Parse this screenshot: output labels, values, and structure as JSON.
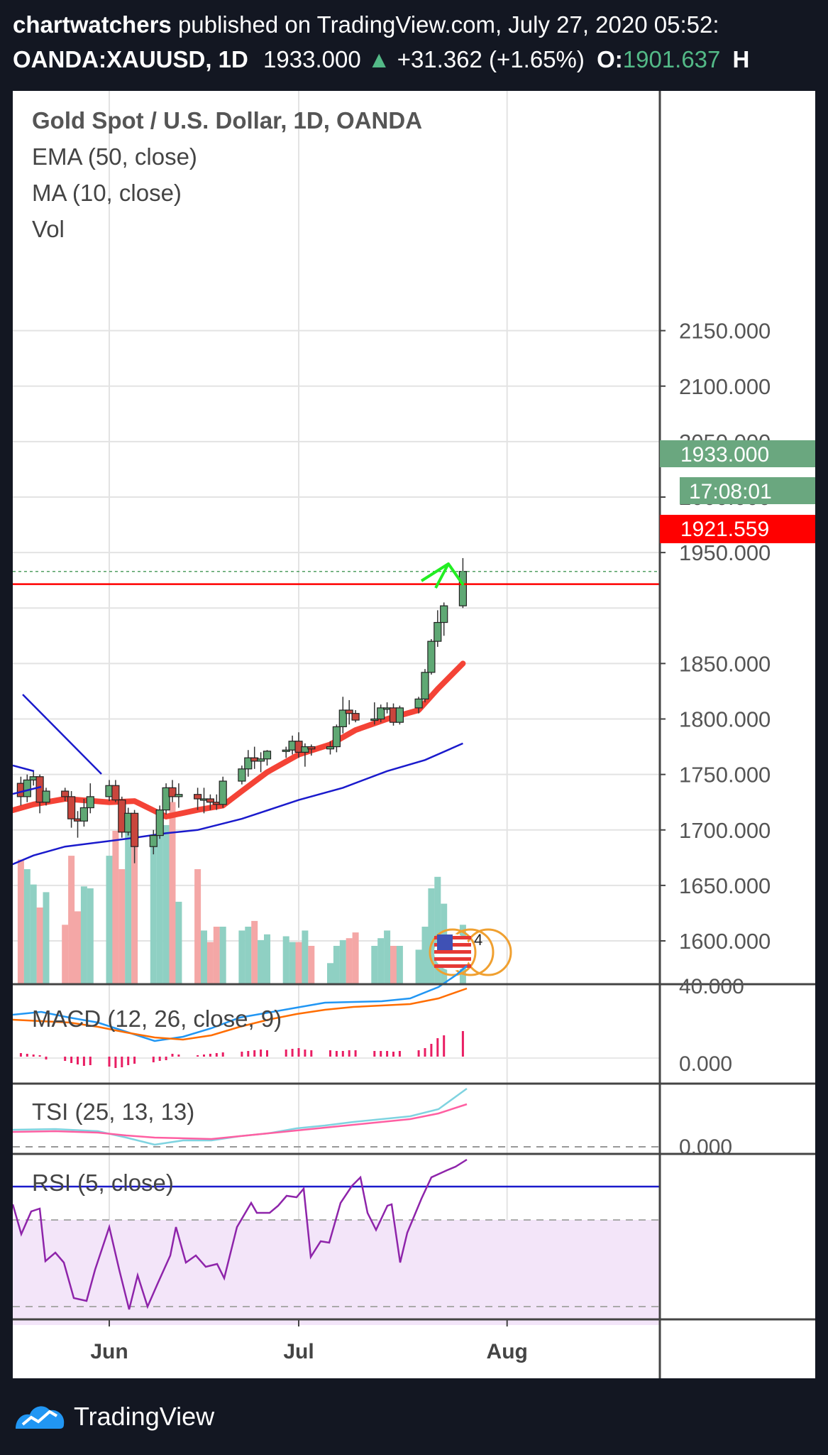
{
  "header": {
    "author": "chartwatchers",
    "published_text": "published on TradingView.com, July 27, 2020 05:52:",
    "symbol": "OANDA:XAUUSD, 1D",
    "price": "1933.000",
    "change": "+31.362 (+1.65%)",
    "open_label": "O:",
    "open_value": "1901.637",
    "trailing": "H"
  },
  "legend": {
    "title": "Gold Spot / U.S. Dollar, 1D, OANDA",
    "ema": "EMA (50, close)",
    "ma": "MA (10, close)",
    "vol": "Vol"
  },
  "price_labels": {
    "last": "1933.000",
    "countdown": "17:08:01",
    "red_line": "1921.559"
  },
  "event_badge_count": "4",
  "macd": {
    "title": "MACD (12, 26, close, 9)",
    "axis_top": "40.000",
    "axis_zero": "0.000"
  },
  "tsi": {
    "title": "TSI (25, 13, 13)",
    "axis_zero": "0.000"
  },
  "rsi": {
    "title": "RSI (5, close)"
  },
  "footer": {
    "brand": "TradingView"
  },
  "colors": {
    "background": "#131722",
    "up": "#53b987",
    "down": "#d9534f",
    "ema": "#1a1acc",
    "ma": "#f44336",
    "red_line": "#ff0000",
    "macd": "#2196f3",
    "signal": "#ff6d00",
    "tsi": "#7fd3e0",
    "tsi_signal": "#ff5fa2",
    "rsi": "#8e24aa"
  },
  "chart_data": {
    "type": "candlestick",
    "y_ticks": [
      "2150.000",
      "2100.000",
      "2050.000",
      "2000.000",
      "1950.000",
      "1850.000",
      "1800.000",
      "1750.000",
      "1700.000",
      "1650.000",
      "1600.000"
    ],
    "ylim": [
      1572,
      2180
    ],
    "x_ticks": [
      {
        "label": "Jun",
        "date": "2020-06-01"
      },
      {
        "label": "Jul",
        "date": "2020-07-01"
      },
      {
        "label": "Aug",
        "date": "2020-08-03"
      }
    ],
    "horizontal_line": 1921.559,
    "candles": [
      {
        "date": "2020-05-15",
        "o": 1730,
        "h": 1765,
        "l": 1718,
        "c": 1742
      },
      {
        "date": "2020-05-18",
        "o": 1742,
        "h": 1748,
        "l": 1722,
        "c": 1730
      },
      {
        "date": "2020-05-19",
        "o": 1730,
        "h": 1750,
        "l": 1725,
        "c": 1745
      },
      {
        "date": "2020-05-20",
        "o": 1745,
        "h": 1753,
        "l": 1740,
        "c": 1748
      },
      {
        "date": "2020-05-21",
        "o": 1748,
        "h": 1750,
        "l": 1715,
        "c": 1725
      },
      {
        "date": "2020-05-22",
        "o": 1725,
        "h": 1738,
        "l": 1722,
        "c": 1735
      },
      {
        "date": "2020-05-25",
        "o": 1735,
        "h": 1738,
        "l": 1726,
        "c": 1730
      },
      {
        "date": "2020-05-26",
        "o": 1730,
        "h": 1735,
        "l": 1702,
        "c": 1710
      },
      {
        "date": "2020-05-27",
        "o": 1710,
        "h": 1717,
        "l": 1693,
        "c": 1708
      },
      {
        "date": "2020-05-28",
        "o": 1708,
        "h": 1728,
        "l": 1703,
        "c": 1720
      },
      {
        "date": "2020-05-29",
        "o": 1720,
        "h": 1742,
        "l": 1715,
        "c": 1730
      },
      {
        "date": "2020-06-01",
        "o": 1730,
        "h": 1745,
        "l": 1726,
        "c": 1740
      },
      {
        "date": "2020-06-02",
        "o": 1740,
        "h": 1745,
        "l": 1725,
        "c": 1727
      },
      {
        "date": "2020-06-03",
        "o": 1727,
        "h": 1730,
        "l": 1693,
        "c": 1698
      },
      {
        "date": "2020-06-04",
        "o": 1698,
        "h": 1720,
        "l": 1695,
        "c": 1715
      },
      {
        "date": "2020-06-05",
        "o": 1715,
        "h": 1718,
        "l": 1670,
        "c": 1685
      },
      {
        "date": "2020-06-08",
        "o": 1685,
        "h": 1700,
        "l": 1678,
        "c": 1695
      },
      {
        "date": "2020-06-09",
        "o": 1695,
        "h": 1722,
        "l": 1692,
        "c": 1718
      },
      {
        "date": "2020-06-10",
        "o": 1718,
        "h": 1742,
        "l": 1714,
        "c": 1738
      },
      {
        "date": "2020-06-11",
        "o": 1738,
        "h": 1745,
        "l": 1725,
        "c": 1730
      },
      {
        "date": "2020-06-12",
        "o": 1730,
        "h": 1742,
        "l": 1720,
        "c": 1732
      },
      {
        "date": "2020-06-15",
        "o": 1732,
        "h": 1738,
        "l": 1718,
        "c": 1728
      },
      {
        "date": "2020-06-16",
        "o": 1728,
        "h": 1738,
        "l": 1715,
        "c": 1728
      },
      {
        "date": "2020-06-17",
        "o": 1728,
        "h": 1732,
        "l": 1718,
        "c": 1725
      },
      {
        "date": "2020-06-18",
        "o": 1725,
        "h": 1732,
        "l": 1718,
        "c": 1723
      },
      {
        "date": "2020-06-19",
        "o": 1723,
        "h": 1748,
        "l": 1720,
        "c": 1744
      },
      {
        "date": "2020-06-22",
        "o": 1744,
        "h": 1758,
        "l": 1741,
        "c": 1755
      },
      {
        "date": "2020-06-23",
        "o": 1755,
        "h": 1772,
        "l": 1748,
        "c": 1765
      },
      {
        "date": "2020-06-24",
        "o": 1765,
        "h": 1775,
        "l": 1755,
        "c": 1762
      },
      {
        "date": "2020-06-25",
        "o": 1762,
        "h": 1770,
        "l": 1752,
        "c": 1764
      },
      {
        "date": "2020-06-26",
        "o": 1764,
        "h": 1772,
        "l": 1758,
        "c": 1771
      },
      {
        "date": "2020-06-29",
        "o": 1771,
        "h": 1775,
        "l": 1765,
        "c": 1772
      },
      {
        "date": "2020-06-30",
        "o": 1772,
        "h": 1785,
        "l": 1768,
        "c": 1780
      },
      {
        "date": "2020-07-01",
        "o": 1780,
        "h": 1788,
        "l": 1765,
        "c": 1770
      },
      {
        "date": "2020-07-02",
        "o": 1770,
        "h": 1778,
        "l": 1757,
        "c": 1775
      },
      {
        "date": "2020-07-03",
        "o": 1775,
        "h": 1777,
        "l": 1767,
        "c": 1773
      },
      {
        "date": "2020-07-06",
        "o": 1773,
        "h": 1780,
        "l": 1768,
        "c": 1775
      },
      {
        "date": "2020-07-07",
        "o": 1775,
        "h": 1795,
        "l": 1770,
        "c": 1793
      },
      {
        "date": "2020-07-08",
        "o": 1793,
        "h": 1820,
        "l": 1787,
        "c": 1808
      },
      {
        "date": "2020-07-09",
        "o": 1808,
        "h": 1817,
        "l": 1795,
        "c": 1805
      },
      {
        "date": "2020-07-10",
        "o": 1805,
        "h": 1808,
        "l": 1797,
        "c": 1799
      },
      {
        "date": "2020-07-13",
        "o": 1799,
        "h": 1815,
        "l": 1795,
        "c": 1800
      },
      {
        "date": "2020-07-14",
        "o": 1800,
        "h": 1813,
        "l": 1797,
        "c": 1810
      },
      {
        "date": "2020-07-15",
        "o": 1810,
        "h": 1815,
        "l": 1805,
        "c": 1810
      },
      {
        "date": "2020-07-16",
        "o": 1810,
        "h": 1814,
        "l": 1794,
        "c": 1797
      },
      {
        "date": "2020-07-17",
        "o": 1797,
        "h": 1812,
        "l": 1795,
        "c": 1810
      },
      {
        "date": "2020-07-20",
        "o": 1810,
        "h": 1820,
        "l": 1805,
        "c": 1818
      },
      {
        "date": "2020-07-21",
        "o": 1818,
        "h": 1845,
        "l": 1815,
        "c": 1842
      },
      {
        "date": "2020-07-22",
        "o": 1842,
        "h": 1872,
        "l": 1840,
        "c": 1870
      },
      {
        "date": "2020-07-23",
        "o": 1870,
        "h": 1898,
        "l": 1865,
        "c": 1887
      },
      {
        "date": "2020-07-24",
        "o": 1887,
        "h": 1905,
        "l": 1875,
        "c": 1902
      },
      {
        "date": "2020-07-27",
        "o": 1902,
        "h": 1945,
        "l": 1900,
        "c": 1933
      }
    ],
    "ma10_close": [
      {
        "date": "2020-05-15",
        "v": 1715
      },
      {
        "date": "2020-05-20",
        "v": 1723
      },
      {
        "date": "2020-05-25",
        "v": 1728
      },
      {
        "date": "2020-06-01",
        "v": 1725
      },
      {
        "date": "2020-06-05",
        "v": 1726
      },
      {
        "date": "2020-06-10",
        "v": 1712
      },
      {
        "date": "2020-06-15",
        "v": 1718
      },
      {
        "date": "2020-06-19",
        "v": 1722
      },
      {
        "date": "2020-06-22",
        "v": 1735
      },
      {
        "date": "2020-06-26",
        "v": 1752
      },
      {
        "date": "2020-07-01",
        "v": 1768
      },
      {
        "date": "2020-07-06",
        "v": 1777
      },
      {
        "date": "2020-07-10",
        "v": 1790
      },
      {
        "date": "2020-07-15",
        "v": 1800
      },
      {
        "date": "2020-07-20",
        "v": 1808
      },
      {
        "date": "2020-07-23",
        "v": 1827
      },
      {
        "date": "2020-07-27",
        "v": 1850
      }
    ],
    "ema50_close": [
      {
        "date": "2020-05-15",
        "v": 1665
      },
      {
        "date": "2020-05-20",
        "v": 1677
      },
      {
        "date": "2020-05-25",
        "v": 1685
      },
      {
        "date": "2020-06-01",
        "v": 1690
      },
      {
        "date": "2020-06-05",
        "v": 1693
      },
      {
        "date": "2020-06-10",
        "v": 1697
      },
      {
        "date": "2020-06-15",
        "v": 1700
      },
      {
        "date": "2020-06-22",
        "v": 1710
      },
      {
        "date": "2020-07-01",
        "v": 1727
      },
      {
        "date": "2020-07-08",
        "v": 1738
      },
      {
        "date": "2020-07-15",
        "v": 1753
      },
      {
        "date": "2020-07-21",
        "v": 1763
      },
      {
        "date": "2020-07-27",
        "v": 1778
      }
    ],
    "volume_relative": [
      0.56,
      0.65,
      0.6,
      0.52,
      0.4,
      0.48,
      0.31,
      0.67,
      0.38,
      0.51,
      0.5,
      0.67,
      0.8,
      0.6,
      0.85,
      0.73,
      0.77,
      0.8,
      0.83,
      0.95,
      0.43,
      0.6,
      0.28,
      0.22,
      0.3,
      0.3,
      0.28,
      0.3,
      0.33,
      0.23,
      0.26,
      0.25,
      0.22,
      0.22,
      0.28,
      0.2,
      0.11,
      0.2,
      0.23,
      0.24,
      0.27,
      0.2,
      0.24,
      0.28,
      0.2,
      0.2,
      0.18,
      0.3,
      0.5,
      0.56,
      0.42,
      0.31
    ],
    "indicators": {
      "macd_axis": [
        "40.000",
        "0.000"
      ],
      "tsi_axis": [
        "0.000"
      ],
      "rsi_levels": {
        "overbought": 80,
        "upper_band": 70,
        "lower_band": 30
      }
    }
  }
}
